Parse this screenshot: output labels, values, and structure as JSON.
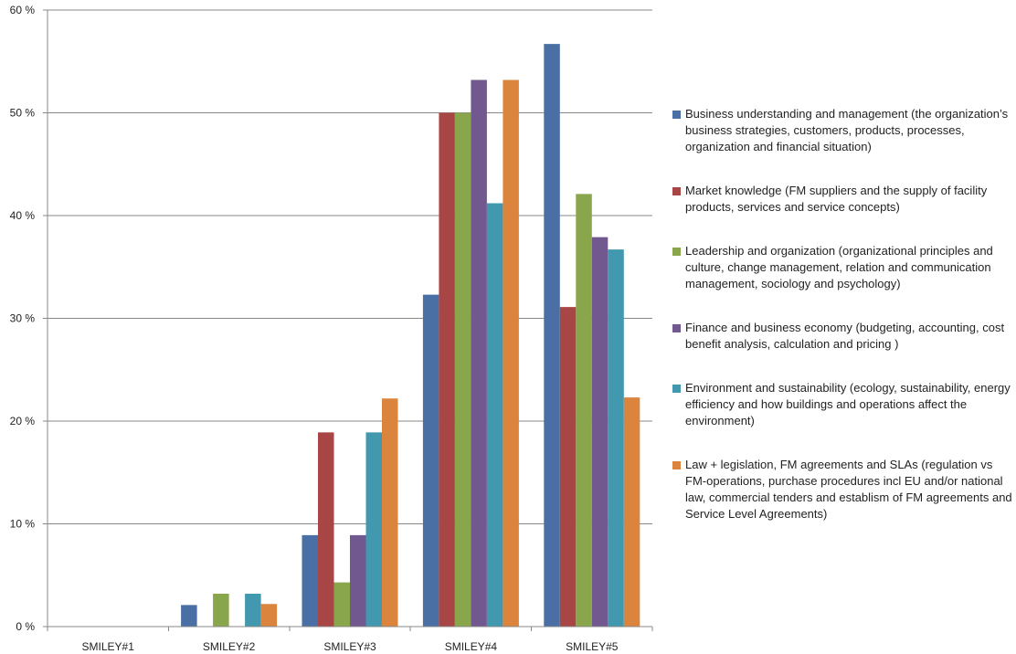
{
  "chart_data": {
    "type": "bar",
    "title": "",
    "xlabel": "",
    "ylabel": "",
    "ylim": [
      0,
      60
    ],
    "y_ticks": [
      "0 %",
      "10 %",
      "20 %",
      "30 %",
      "40 %",
      "50 %",
      "60 %"
    ],
    "grid": true,
    "legend_position": "right",
    "categories": [
      "SMILEY#1",
      "SMILEY#2",
      "SMILEY#3",
      "SMILEY#4",
      "SMILEY#5"
    ],
    "series": [
      {
        "name": "Business understanding and management (the organization’s business strategies, customers, products, processes, organization and financial situation)",
        "color": "#4a6fa5",
        "values": [
          0,
          2.1,
          8.9,
          32.3,
          56.7
        ]
      },
      {
        "name": "Market knowledge (FM suppliers and the supply of facility products, services and service concepts)",
        "color": "#a84545",
        "values": [
          0,
          0,
          18.9,
          50.0,
          31.1
        ]
      },
      {
        "name": "Leadership and organization (organizational principles and culture, change management, relation and communication management, sociology and psychology)",
        "color": "#8aa64c",
        "values": [
          0,
          3.2,
          4.3,
          50.0,
          42.1
        ]
      },
      {
        "name": "Finance and business economy (budgeting, accounting, cost benefit analysis, calculation and pricing )",
        "color": "#71588f",
        "values": [
          0,
          0,
          8.9,
          53.2,
          37.9
        ]
      },
      {
        "name": "Environment and sustainability (ecology, sustainability, energy efficiency and how buildings and operations affect the environment)",
        "color": "#4198af",
        "values": [
          0,
          3.2,
          18.9,
          41.2,
          36.7
        ]
      },
      {
        "name": "Law + legislation, FM agreements and SLAs (regulation vs FM-operations, purchase procedures incl EU and/or national law, commercial tenders and establism of FM agreements and Service Level Agreements)",
        "color": "#db843d",
        "values": [
          0,
          2.2,
          22.2,
          53.2,
          22.3
        ]
      }
    ]
  }
}
